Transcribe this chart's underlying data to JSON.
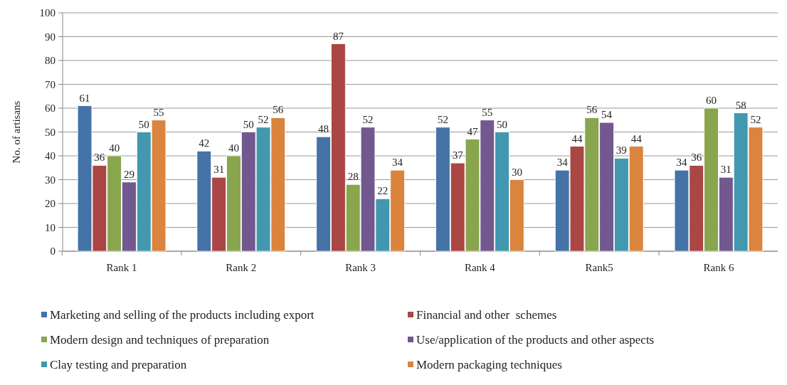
{
  "chart_data": {
    "type": "bar",
    "ylabel": "No. of artisans",
    "categories": [
      "Rank 1",
      "Rank 2",
      "Rank 3",
      "Rank 4",
      "Rank5",
      "Rank 6"
    ],
    "series": [
      {
        "name": "Marketing and selling of the products including export",
        "color": "#4572a7",
        "values": [
          61,
          42,
          48,
          52,
          34,
          34
        ]
      },
      {
        "name": "Financial and other  schemes",
        "color": "#aa4643",
        "values": [
          36,
          31,
          87,
          37,
          44,
          36
        ]
      },
      {
        "name": "Modern design and techniques of preparation",
        "color": "#89a54e",
        "values": [
          40,
          40,
          28,
          47,
          56,
          60
        ]
      },
      {
        "name": "Use/application of the products and other aspects",
        "color": "#71588f",
        "values": [
          29,
          50,
          52,
          55,
          54,
          31
        ]
      },
      {
        "name": "Clay testing and preparation",
        "color": "#4198af",
        "values": [
          50,
          52,
          22,
          50,
          39,
          58
        ]
      },
      {
        "name": "Modern packaging techniques",
        "color": "#db843d",
        "values": [
          55,
          56,
          34,
          30,
          44,
          52
        ]
      }
    ],
    "ylim": [
      0,
      100
    ],
    "yticks": [
      0,
      10,
      20,
      30,
      40,
      50,
      60,
      70,
      80,
      90,
      100
    ],
    "grid": "y",
    "data_labels": true,
    "legend": "bottom"
  }
}
